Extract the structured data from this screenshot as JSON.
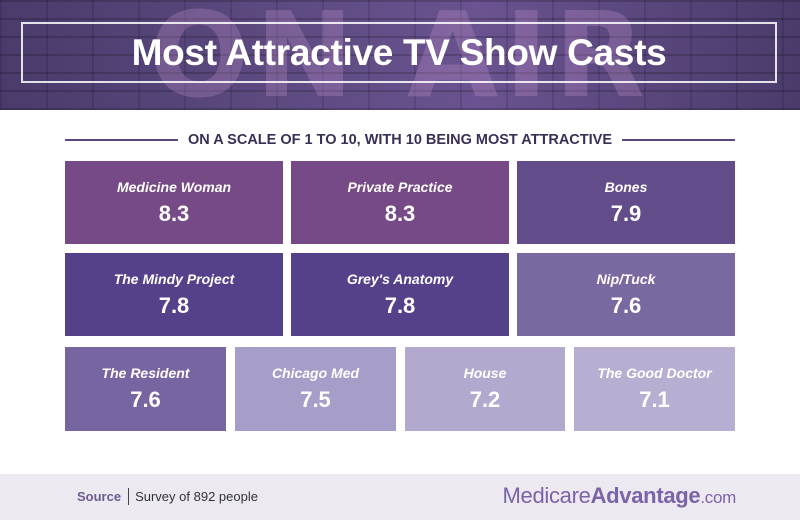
{
  "header": {
    "title": "Most Attractive TV Show Casts",
    "background_text": "ON AIR"
  },
  "subtitle": "ON A SCALE OF 1 TO 10, WITH 10 BEING MOST ATTRACTIVE",
  "shows": [
    {
      "name": "Medicine Woman",
      "score": "8.3",
      "color": "#764a86"
    },
    {
      "name": "Private Practice",
      "score": "8.3",
      "color": "#764a86"
    },
    {
      "name": "Bones",
      "score": "7.9",
      "color": "#634c8a"
    },
    {
      "name": "The Mindy Project",
      "score": "7.8",
      "color": "#55418a"
    },
    {
      "name": "Grey's Anatomy",
      "score": "7.8",
      "color": "#55418a"
    },
    {
      "name": "Nip/Tuck",
      "score": "7.6",
      "color": "#786aa0"
    },
    {
      "name": "The Resident",
      "score": "7.6",
      "color": "#7665a0"
    },
    {
      "name": "Chicago Med",
      "score": "7.5",
      "color": "#a79dc9"
    },
    {
      "name": "House",
      "score": "7.2",
      "color": "#b3a9cf"
    },
    {
      "name": "The Good Doctor",
      "score": "7.1",
      "color": "#b7aed2"
    }
  ],
  "footer": {
    "source_label": "Source",
    "source_text": "Survey of 892 people",
    "brand_part1": "Medicare",
    "brand_part2": "Advantage",
    "brand_part3": ".com"
  },
  "colors": {
    "banner": "#5f4c84",
    "footer_bg": "#eceaf0",
    "brand": "#7b63a8"
  }
}
